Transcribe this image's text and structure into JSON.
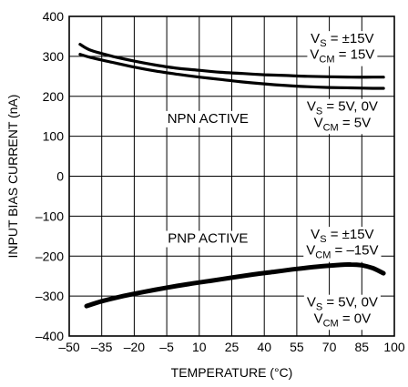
{
  "chart_data": {
    "type": "line",
    "title": "",
    "xlabel": "TEMPERATURE (°C)",
    "ylabel": "INPUT BIAS CURRENT (nA)",
    "xlim": [
      -50,
      100
    ],
    "ylim": [
      -400,
      400
    ],
    "x_ticks": [
      -50,
      -35,
      -20,
      -5,
      10,
      25,
      40,
      55,
      70,
      85,
      100
    ],
    "x_tick_labels": [
      "–50",
      "–35",
      "–20",
      "–5",
      "10",
      "25",
      "40",
      "55",
      "70",
      "85",
      "100"
    ],
    "y_ticks": [
      -400,
      -300,
      -200,
      -100,
      0,
      100,
      200,
      300,
      400
    ],
    "y_tick_labels": [
      "–400",
      "–300",
      "–200",
      "–100",
      "0",
      "100",
      "200",
      "300",
      "400"
    ],
    "grid": true,
    "series": [
      {
        "x": [
          -45,
          -40,
          -30,
          -20,
          -10,
          0,
          10,
          20,
          30,
          40,
          50,
          60,
          70,
          80,
          90,
          95
        ],
        "y": [
          330,
          315,
          300,
          288,
          278,
          270,
          265,
          260,
          257,
          254,
          252,
          250,
          249,
          248,
          248,
          248
        ]
      },
      {
        "x": [
          -45,
          -40,
          -30,
          -20,
          -10,
          0,
          10,
          20,
          30,
          40,
          50,
          60,
          70,
          80,
          90,
          95
        ],
        "y": [
          305,
          297,
          285,
          273,
          263,
          255,
          248,
          242,
          236,
          231,
          227,
          224,
          222,
          221,
          220,
          220
        ]
      },
      {
        "x": [
          -42,
          -35,
          -25,
          -15,
          -5,
          5,
          15,
          25,
          35,
          45,
          55,
          65,
          75,
          80,
          85,
          90,
          95
        ],
        "y": [
          -325,
          -313,
          -300,
          -289,
          -279,
          -270,
          -262,
          -254,
          -246,
          -239,
          -232,
          -226,
          -222,
          -221,
          -223,
          -230,
          -243
        ]
      }
    ],
    "annotations": [
      {
        "id": "vs1",
        "base": "V",
        "sub": "S",
        "rest": " = ±15V",
        "x": 76,
        "y": 345
      },
      {
        "id": "vcm1",
        "base": "V",
        "sub": "CM",
        "rest": " = 15V",
        "x": 76,
        "y": 305
      },
      {
        "id": "vs2",
        "base": "V",
        "sub": "S",
        "rest": " = 5V, 0V",
        "x": 76,
        "y": 175
      },
      {
        "id": "vcm2",
        "base": "V",
        "sub": "CM",
        "rest": " = 5V",
        "x": 76,
        "y": 135
      },
      {
        "id": "npn",
        "text": "NPN ACTIVE",
        "x": 14,
        "y": 145
      },
      {
        "id": "pnp",
        "text": "PNP ACTIVE",
        "x": 14,
        "y": -155
      },
      {
        "id": "vs3",
        "base": "V",
        "sub": "S",
        "rest": " = ±15V",
        "x": 76,
        "y": -145
      },
      {
        "id": "vcm3",
        "base": "V",
        "sub": "CM",
        "rest": " = –15V",
        "x": 76,
        "y": -185
      },
      {
        "id": "vs4",
        "base": "V",
        "sub": "S",
        "rest": " = 5V, 0V",
        "x": 76,
        "y": -315
      },
      {
        "id": "vcm4",
        "base": "V",
        "sub": "CM",
        "rest": " = 0V",
        "x": 76,
        "y": -355
      }
    ]
  }
}
